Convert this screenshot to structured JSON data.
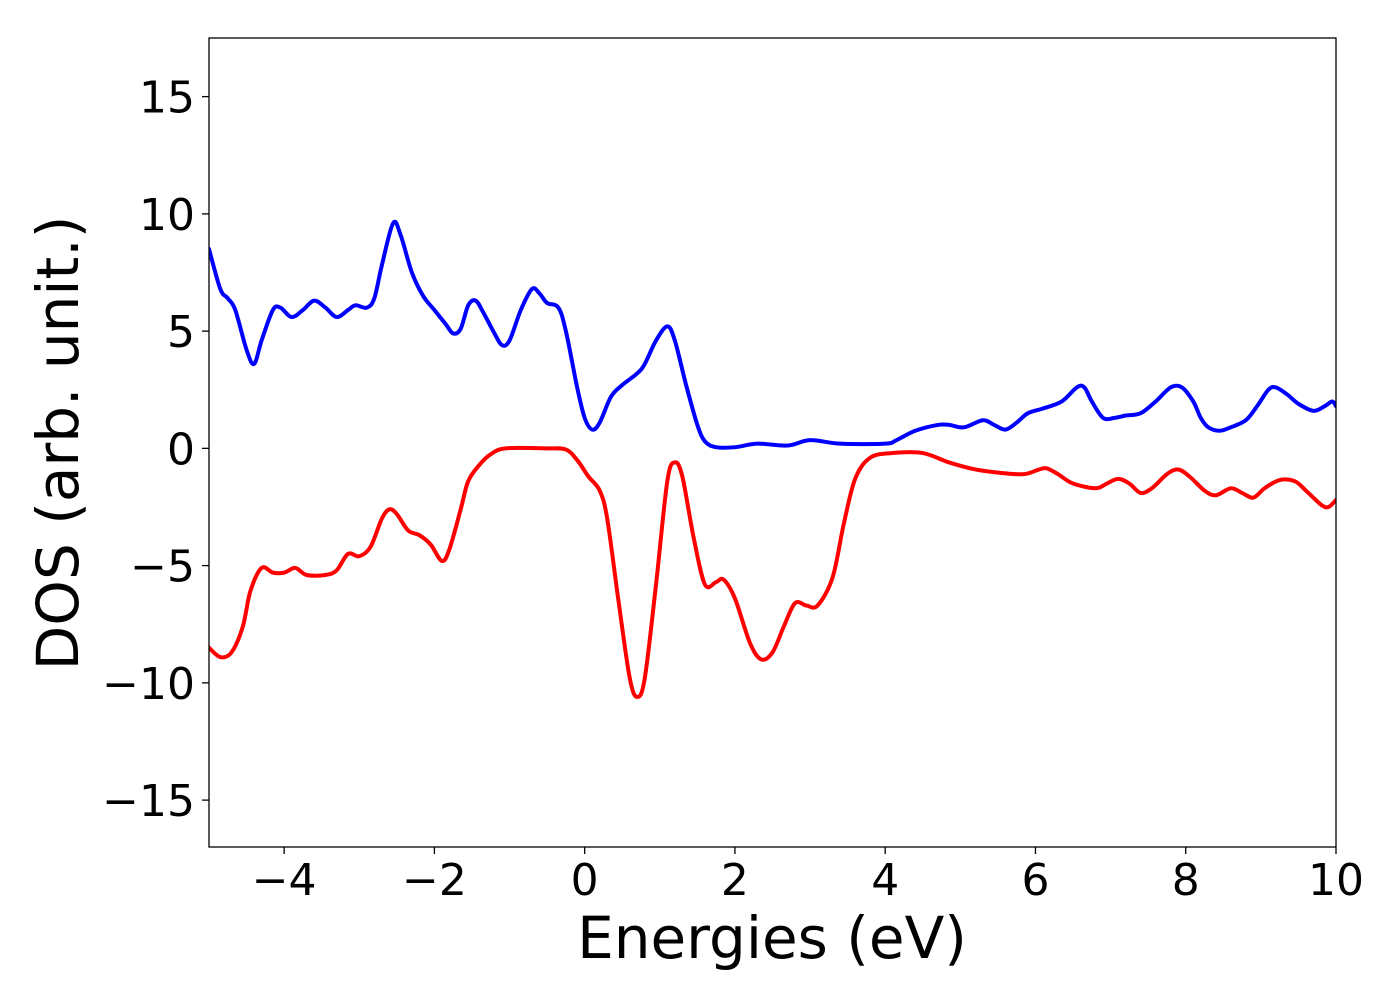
{
  "chart_data": {
    "type": "line",
    "xlabel": "Energies (eV)",
    "ylabel": "DOS (arb. unit.)",
    "xlim": [
      -5,
      10
    ],
    "ylim": [
      -17,
      17.5
    ],
    "xticks": [
      -4,
      -2,
      0,
      2,
      4,
      6,
      8,
      10
    ],
    "xtick_labels": [
      "−4",
      "−2",
      "0",
      "2",
      "4",
      "6",
      "8",
      "10"
    ],
    "yticks": [
      15,
      10,
      5,
      0,
      -5,
      -10,
      -15
    ],
    "ytick_labels": [
      "15",
      "10",
      "5",
      "0",
      "−5",
      "−10",
      "−15"
    ],
    "grid": false,
    "series": [
      {
        "color": "#0000ff",
        "points": [
          [
            -5.0,
            8.5
          ],
          [
            -4.85,
            6.8
          ],
          [
            -4.75,
            6.4
          ],
          [
            -4.65,
            5.9
          ],
          [
            -4.5,
            4.2
          ],
          [
            -4.4,
            3.6
          ],
          [
            -4.3,
            4.6
          ],
          [
            -4.15,
            5.9
          ],
          [
            -4.05,
            6.0
          ],
          [
            -3.9,
            5.6
          ],
          [
            -3.75,
            5.9
          ],
          [
            -3.6,
            6.3
          ],
          [
            -3.45,
            6.0
          ],
          [
            -3.3,
            5.6
          ],
          [
            -3.15,
            5.9
          ],
          [
            -3.05,
            6.1
          ],
          [
            -2.9,
            6.0
          ],
          [
            -2.8,
            6.4
          ],
          [
            -2.7,
            7.8
          ],
          [
            -2.55,
            9.6
          ],
          [
            -2.45,
            9.1
          ],
          [
            -2.3,
            7.5
          ],
          [
            -2.15,
            6.5
          ],
          [
            -2.0,
            5.9
          ],
          [
            -1.85,
            5.3
          ],
          [
            -1.75,
            4.9
          ],
          [
            -1.65,
            5.1
          ],
          [
            -1.55,
            6.1
          ],
          [
            -1.45,
            6.3
          ],
          [
            -1.35,
            5.8
          ],
          [
            -1.2,
            4.9
          ],
          [
            -1.1,
            4.4
          ],
          [
            -1.0,
            4.6
          ],
          [
            -0.85,
            5.9
          ],
          [
            -0.7,
            6.8
          ],
          [
            -0.6,
            6.6
          ],
          [
            -0.5,
            6.2
          ],
          [
            -0.35,
            6.0
          ],
          [
            -0.25,
            5.0
          ],
          [
            -0.1,
            2.6
          ],
          [
            0.0,
            1.3
          ],
          [
            0.1,
            0.8
          ],
          [
            0.2,
            1.1
          ],
          [
            0.35,
            2.2
          ],
          [
            0.5,
            2.7
          ],
          [
            0.7,
            3.2
          ],
          [
            0.8,
            3.6
          ],
          [
            0.95,
            4.6
          ],
          [
            1.1,
            5.2
          ],
          [
            1.2,
            4.6
          ],
          [
            1.35,
            2.7
          ],
          [
            1.5,
            1.0
          ],
          [
            1.6,
            0.3
          ],
          [
            1.75,
            0.05
          ],
          [
            2.0,
            0.05
          ],
          [
            2.3,
            0.2
          ],
          [
            2.7,
            0.12
          ],
          [
            3.0,
            0.35
          ],
          [
            3.4,
            0.2
          ],
          [
            4.0,
            0.2
          ],
          [
            4.15,
            0.35
          ],
          [
            4.4,
            0.75
          ],
          [
            4.7,
            1.0
          ],
          [
            4.85,
            1.0
          ],
          [
            5.05,
            0.9
          ],
          [
            5.3,
            1.2
          ],
          [
            5.45,
            1.0
          ],
          [
            5.6,
            0.8
          ],
          [
            5.75,
            1.1
          ],
          [
            5.9,
            1.5
          ],
          [
            6.1,
            1.7
          ],
          [
            6.35,
            2.0
          ],
          [
            6.55,
            2.6
          ],
          [
            6.65,
            2.6
          ],
          [
            6.75,
            2.0
          ],
          [
            6.9,
            1.3
          ],
          [
            7.05,
            1.3
          ],
          [
            7.2,
            1.4
          ],
          [
            7.4,
            1.5
          ],
          [
            7.6,
            2.0
          ],
          [
            7.8,
            2.6
          ],
          [
            7.95,
            2.6
          ],
          [
            8.1,
            2.0
          ],
          [
            8.2,
            1.3
          ],
          [
            8.3,
            0.9
          ],
          [
            8.45,
            0.75
          ],
          [
            8.6,
            0.9
          ],
          [
            8.8,
            1.2
          ],
          [
            8.95,
            1.8
          ],
          [
            9.1,
            2.5
          ],
          [
            9.2,
            2.6
          ],
          [
            9.35,
            2.3
          ],
          [
            9.5,
            1.9
          ],
          [
            9.7,
            1.6
          ],
          [
            9.85,
            1.8
          ],
          [
            9.95,
            2.0
          ],
          [
            10.0,
            1.8
          ]
        ]
      },
      {
        "color": "#ff0000",
        "points": [
          [
            -5.0,
            -8.5
          ],
          [
            -4.85,
            -8.9
          ],
          [
            -4.7,
            -8.7
          ],
          [
            -4.55,
            -7.6
          ],
          [
            -4.45,
            -6.1
          ],
          [
            -4.3,
            -5.1
          ],
          [
            -4.15,
            -5.3
          ],
          [
            -4.0,
            -5.3
          ],
          [
            -3.85,
            -5.1
          ],
          [
            -3.7,
            -5.4
          ],
          [
            -3.45,
            -5.4
          ],
          [
            -3.3,
            -5.2
          ],
          [
            -3.15,
            -4.5
          ],
          [
            -3.0,
            -4.6
          ],
          [
            -2.85,
            -4.2
          ],
          [
            -2.7,
            -3.0
          ],
          [
            -2.6,
            -2.6
          ],
          [
            -2.5,
            -2.8
          ],
          [
            -2.35,
            -3.5
          ],
          [
            -2.2,
            -3.7
          ],
          [
            -2.05,
            -4.1
          ],
          [
            -1.9,
            -4.8
          ],
          [
            -1.8,
            -4.3
          ],
          [
            -1.65,
            -2.6
          ],
          [
            -1.55,
            -1.4
          ],
          [
            -1.4,
            -0.7
          ],
          [
            -1.25,
            -0.25
          ],
          [
            -1.05,
            0.0
          ],
          [
            -0.5,
            0.0
          ],
          [
            -0.25,
            -0.05
          ],
          [
            -0.1,
            -0.5
          ],
          [
            0.05,
            -1.2
          ],
          [
            0.2,
            -1.8
          ],
          [
            0.3,
            -3.0
          ],
          [
            0.45,
            -6.5
          ],
          [
            0.6,
            -9.8
          ],
          [
            0.7,
            -10.6
          ],
          [
            0.8,
            -9.8
          ],
          [
            0.95,
            -5.8
          ],
          [
            1.1,
            -1.4
          ],
          [
            1.2,
            -0.6
          ],
          [
            1.3,
            -1.2
          ],
          [
            1.45,
            -3.8
          ],
          [
            1.6,
            -5.8
          ],
          [
            1.75,
            -5.7
          ],
          [
            1.85,
            -5.6
          ],
          [
            2.0,
            -6.4
          ],
          [
            2.2,
            -8.3
          ],
          [
            2.35,
            -9.0
          ],
          [
            2.5,
            -8.7
          ],
          [
            2.65,
            -7.6
          ],
          [
            2.8,
            -6.6
          ],
          [
            2.95,
            -6.7
          ],
          [
            3.1,
            -6.7
          ],
          [
            3.3,
            -5.5
          ],
          [
            3.45,
            -3.2
          ],
          [
            3.6,
            -1.3
          ],
          [
            3.8,
            -0.4
          ],
          [
            4.1,
            -0.2
          ],
          [
            4.5,
            -0.2
          ],
          [
            4.85,
            -0.6
          ],
          [
            5.2,
            -0.9
          ],
          [
            5.55,
            -1.05
          ],
          [
            5.85,
            -1.1
          ],
          [
            6.05,
            -0.9
          ],
          [
            6.15,
            -0.85
          ],
          [
            6.3,
            -1.1
          ],
          [
            6.5,
            -1.5
          ],
          [
            6.8,
            -1.7
          ],
          [
            6.95,
            -1.5
          ],
          [
            7.1,
            -1.3
          ],
          [
            7.25,
            -1.5
          ],
          [
            7.4,
            -1.9
          ],
          [
            7.55,
            -1.7
          ],
          [
            7.75,
            -1.1
          ],
          [
            7.9,
            -0.9
          ],
          [
            8.05,
            -1.2
          ],
          [
            8.25,
            -1.8
          ],
          [
            8.4,
            -2.0
          ],
          [
            8.6,
            -1.7
          ],
          [
            8.75,
            -1.9
          ],
          [
            8.9,
            -2.1
          ],
          [
            9.05,
            -1.7
          ],
          [
            9.25,
            -1.35
          ],
          [
            9.45,
            -1.4
          ],
          [
            9.6,
            -1.8
          ],
          [
            9.8,
            -2.4
          ],
          [
            9.9,
            -2.5
          ],
          [
            10.0,
            -2.2
          ]
        ]
      }
    ]
  }
}
